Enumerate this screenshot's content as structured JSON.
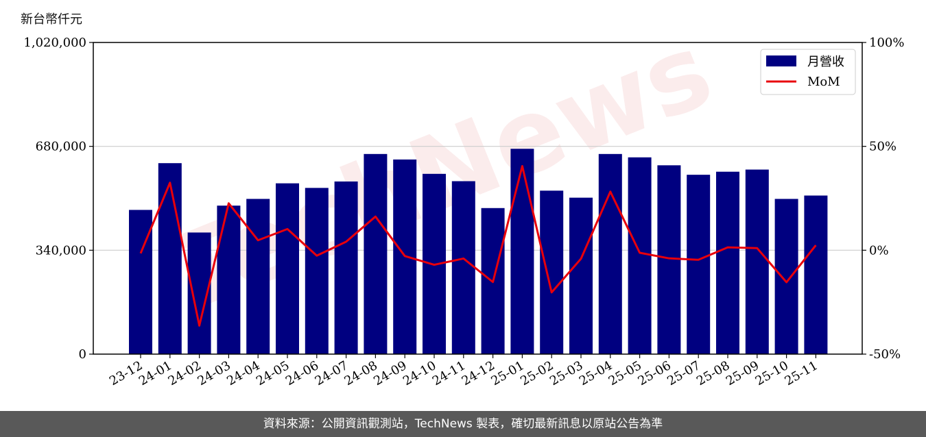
{
  "page": {
    "unit_label": "新台幣仟元",
    "footer_text": "資料來源：公開資訊觀測站，TechNews 製表，確切最新訊息以原站公告為準",
    "watermark_text": "TechNews"
  },
  "chart_data": {
    "type": "bar",
    "categories": [
      "23-12",
      "24-01",
      "24-02",
      "24-03",
      "24-04",
      "24-05",
      "24-06",
      "24-07",
      "24-08",
      "24-09",
      "24-10",
      "24-11",
      "24-12",
      "25-01",
      "25-02",
      "25-03",
      "25-04",
      "25-05",
      "25-06",
      "25-07",
      "25-08",
      "25-09",
      "25-10",
      "25-11"
    ],
    "series": [
      {
        "name": "月營收",
        "kind": "bar",
        "axis": "left",
        "color": "#000080",
        "values": [
          472000,
          625000,
          398000,
          486000,
          508000,
          559000,
          544000,
          565000,
          655000,
          637000,
          590000,
          566000,
          478000,
          672000,
          535000,
          512000,
          655000,
          644000,
          618000,
          587000,
          597000,
          604000,
          508000,
          519000
        ]
      },
      {
        "name": "MoM",
        "kind": "line",
        "axis": "right",
        "color": "#e8000b",
        "values": [
          -1.5,
          32.5,
          -36.3,
          22.6,
          4.8,
          10.2,
          -2.6,
          4.1,
          16.2,
          -2.8,
          -7.0,
          -4.0,
          -15.3,
          40.5,
          -20.3,
          -4.1,
          28.2,
          -1.2,
          -3.9,
          -4.6,
          1.4,
          1.0,
          -15.4,
          2.4
        ]
      }
    ],
    "y_left": {
      "min": 0,
      "max": 1020000,
      "ticks": [
        0,
        340000,
        680000,
        1020000
      ],
      "tick_labels": [
        "0",
        "340,000",
        "680,000",
        "1,020,000"
      ]
    },
    "y_right": {
      "min": -50,
      "max": 100,
      "ticks": [
        -50,
        0,
        50,
        100
      ],
      "tick_labels": [
        "-50%",
        "0%",
        "50%",
        "100%"
      ]
    },
    "grid": "horizontal",
    "legend_position": "top-right"
  }
}
